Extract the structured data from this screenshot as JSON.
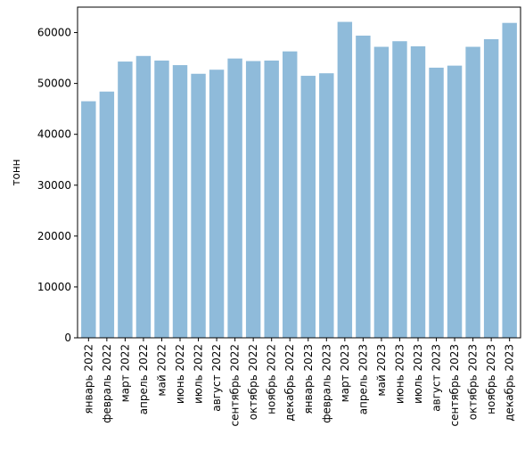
{
  "chart_data": {
    "type": "bar",
    "title": "",
    "xlabel": "",
    "ylabel": "тонн",
    "ylim": [
      0,
      65000
    ],
    "yticks": [
      0,
      10000,
      20000,
      30000,
      40000,
      50000,
      60000
    ],
    "grid": false,
    "bar_color": "#8fbbda",
    "categories": [
      "январь 2022",
      "февраль 2022",
      "март 2022",
      "апрель 2022",
      "май 2022",
      "июнь 2022",
      "июль 2022",
      "август 2022",
      "сентябрь 2022",
      "октябрь 2022",
      "ноябрь 2022",
      "декабрь 2022",
      "январь 2023",
      "февраль 2023",
      "март 2023",
      "апрель 2023",
      "май 2023",
      "июнь 2023",
      "июль 2023",
      "август 2023",
      "сентябрь 2023",
      "октябрь 2023",
      "ноябрь 2023",
      "декабрь 2023"
    ],
    "values": [
      46500,
      48400,
      54300,
      55400,
      54500,
      53600,
      51900,
      52700,
      54900,
      54400,
      54500,
      56300,
      51500,
      52000,
      62100,
      59400,
      57200,
      58300,
      57300,
      53100,
      53500,
      57200,
      58700,
      61900
    ]
  }
}
